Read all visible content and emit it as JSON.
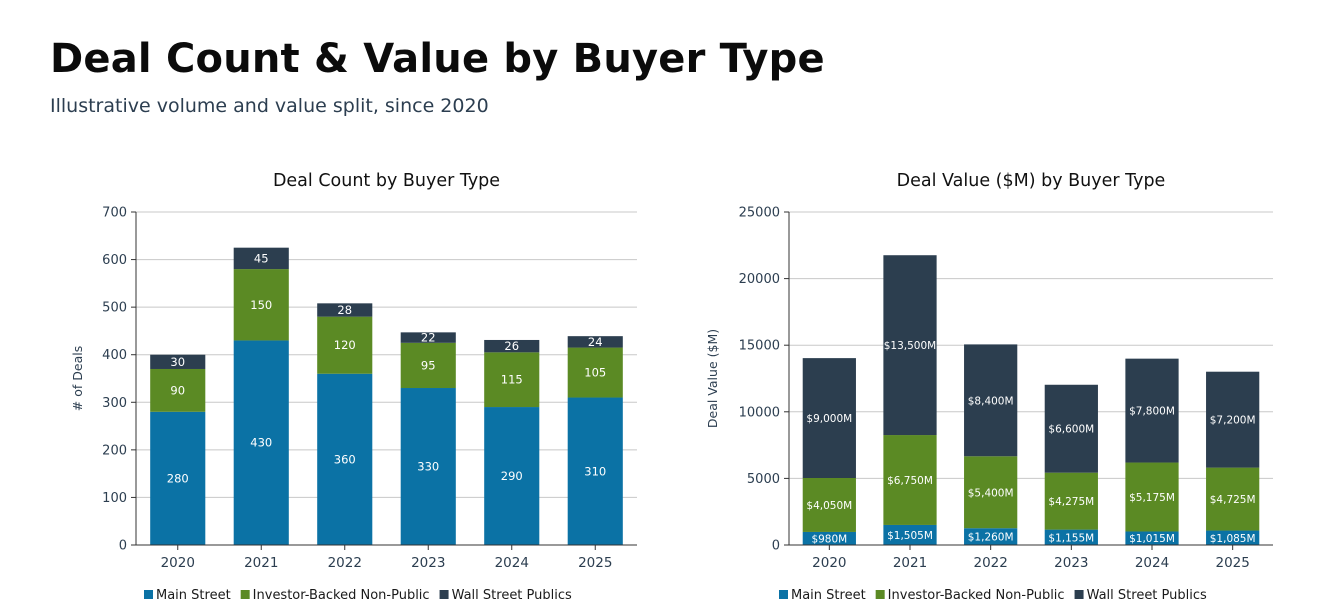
{
  "page": {
    "title": "Deal Count & Value by Buyer Type",
    "subtitle": "Illustrative volume and value split, since 2020"
  },
  "colors": {
    "main_street": "#0b72a5",
    "investor_backed": "#5b8a24",
    "wall_street": "#2c3e4f",
    "grid": "#c8c8c8",
    "axis": "#333333"
  },
  "chart_data": [
    {
      "type": "bar",
      "stacked": true,
      "title": "Deal Count by Buyer Type",
      "xlabel": "",
      "ylabel": "# of Deals",
      "categories": [
        "2020",
        "2021",
        "2022",
        "2023",
        "2024",
        "2025"
      ],
      "ylim": [
        0,
        700
      ],
      "yticks": [
        0,
        100,
        200,
        300,
        400,
        500,
        600,
        700
      ],
      "grid": true,
      "legend": "bottom",
      "series": [
        {
          "name": "Main Street",
          "values": [
            280,
            430,
            360,
            330,
            290,
            310
          ],
          "labels": [
            "280",
            "430",
            "360",
            "330",
            "290",
            "310"
          ]
        },
        {
          "name": "Investor-Backed Non-Public",
          "values": [
            90,
            150,
            120,
            95,
            115,
            105
          ],
          "labels": [
            "90",
            "150",
            "120",
            "95",
            "115",
            "105"
          ]
        },
        {
          "name": "Wall Street Publics",
          "values": [
            30,
            45,
            28,
            22,
            26,
            24
          ],
          "labels": [
            "30",
            "45",
            "28",
            "22",
            "26",
            "24"
          ]
        }
      ]
    },
    {
      "type": "bar",
      "stacked": true,
      "title": "Deal Value ($M) by Buyer Type",
      "xlabel": "",
      "ylabel": "Deal Value ($M)",
      "categories": [
        "2020",
        "2021",
        "2022",
        "2023",
        "2024",
        "2025"
      ],
      "ylim": [
        0,
        25000
      ],
      "yticks": [
        0,
        5000,
        10000,
        15000,
        20000,
        25000
      ],
      "grid": true,
      "legend": "bottom",
      "series": [
        {
          "name": "Main Street",
          "values": [
            980,
            1505,
            1260,
            1155,
            1015,
            1085
          ],
          "labels": [
            "$980M",
            "$1,505M",
            "$1,260M",
            "$1,155M",
            "$1,015M",
            "$1,085M"
          ]
        },
        {
          "name": "Investor-Backed Non-Public",
          "values": [
            4050,
            6750,
            5400,
            4275,
            5175,
            4725
          ],
          "labels": [
            "$4,050M",
            "$6,750M",
            "$5,400M",
            "$4,275M",
            "$5,175M",
            "$4,725M"
          ]
        },
        {
          "name": "Wall Street Publics",
          "values": [
            9000,
            13500,
            8400,
            6600,
            7800,
            7200
          ],
          "labels": [
            "$9,000M",
            "$13,500M",
            "$8,400M",
            "$6,600M",
            "$7,800M",
            "$7,200M"
          ]
        }
      ]
    }
  ]
}
